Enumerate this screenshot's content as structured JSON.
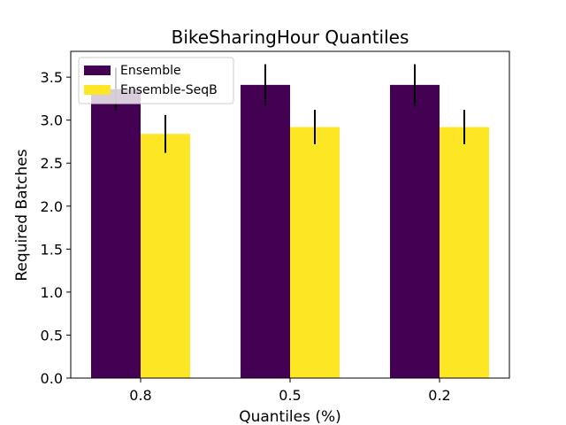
{
  "chart_data": {
    "type": "bar",
    "title": "BikeSharingHour Quantiles",
    "xlabel": "Quantiles (%)",
    "ylabel": "Required Batches",
    "categories": [
      "0.8",
      "0.5",
      "0.2"
    ],
    "ylim": [
      0,
      3.8
    ],
    "yticks": [
      0.0,
      0.5,
      1.0,
      1.5,
      2.0,
      2.5,
      3.0,
      3.5
    ],
    "yticklabels": [
      "0.0",
      "0.5",
      "1.0",
      "1.5",
      "2.0",
      "2.5",
      "3.0",
      "3.5"
    ],
    "legend_position": "top-left",
    "series": [
      {
        "name": "Ensemble",
        "color": "#440154",
        "values": [
          3.36,
          3.41,
          3.41
        ],
        "errors": [
          0.25,
          0.24,
          0.24
        ]
      },
      {
        "name": "Ensemble-SeqB",
        "color": "#fde725",
        "values": [
          2.84,
          2.92,
          2.92
        ],
        "errors": [
          0.22,
          0.2,
          0.2
        ]
      }
    ]
  }
}
